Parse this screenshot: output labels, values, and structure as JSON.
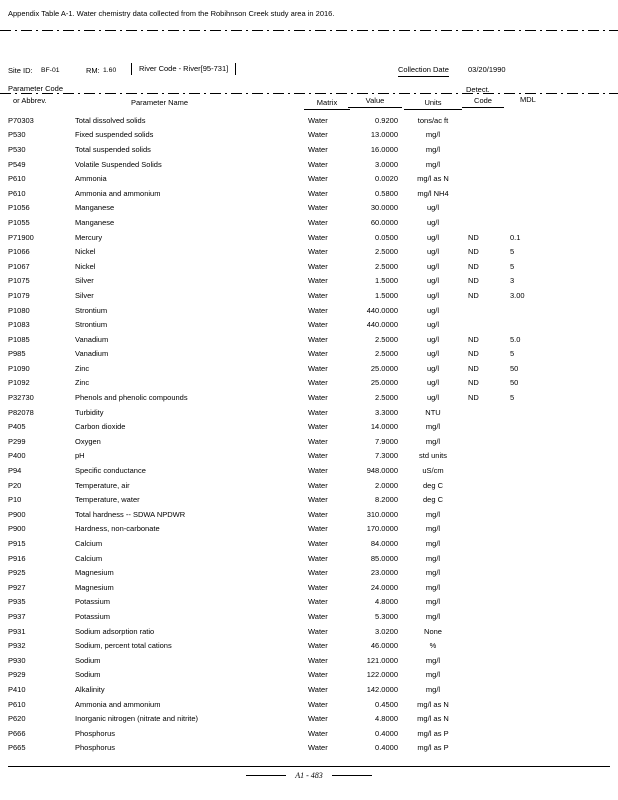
{
  "title": "Appendix Table A-1. Water chemistry data collected from the Robihnson Creek study area in 2016.",
  "meta": {
    "site_id_label": "Site ID:",
    "site_id_value": "BF-01",
    "rm_label": "RM:",
    "rm_value": "1.60",
    "river_code": "River Code - River[95-731]",
    "collection_date_label": "Collection Date",
    "collection_date_value": "03/20/1990"
  },
  "table": {
    "headers": {
      "code_line1": "Parameter Code",
      "code_line2": "or Abbrev.",
      "name": "Parameter Name",
      "matrix": "Matrix",
      "value": "Value",
      "units": "Units",
      "detect_line1": "Detect.",
      "detect_line2": "Code",
      "mdl": "MDL"
    },
    "rows": [
      [
        "P70303",
        "Total dissolved solids",
        "Water",
        "0.9200",
        "tons/ac ft",
        "",
        ""
      ],
      [
        "P530",
        "Fixed suspended solids",
        "Water",
        "13.0000",
        "mg/l",
        "",
        ""
      ],
      [
        "P530",
        "Total suspended solids",
        "Water",
        "16.0000",
        "mg/l",
        "",
        ""
      ],
      [
        "P549",
        "Volatile Suspended Solids",
        "Water",
        "3.0000",
        "mg/l",
        "",
        ""
      ],
      [
        "P610",
        "Ammonia",
        "Water",
        "0.0020",
        "mg/l as N",
        "",
        ""
      ],
      [
        "P610",
        "Ammonia and ammonium",
        "Water",
        "0.5800",
        "mg/l NH4",
        "",
        ""
      ],
      [
        "P1056",
        "Manganese",
        "Water",
        "30.0000",
        "ug/l",
        "",
        ""
      ],
      [
        "P1055",
        "Manganese",
        "Water",
        "60.0000",
        "ug/l",
        "",
        ""
      ],
      [
        "P71900",
        "Mercury",
        "Water",
        "0.0500",
        "ug/l",
        "ND",
        "0.1"
      ],
      [
        "P1066",
        "Nickel",
        "Water",
        "2.5000",
        "ug/l",
        "ND",
        "5"
      ],
      [
        "P1067",
        "Nickel",
        "Water",
        "2.5000",
        "ug/l",
        "ND",
        "5"
      ],
      [
        "P1075",
        "Silver",
        "Water",
        "1.5000",
        "ug/l",
        "ND",
        "3"
      ],
      [
        "P1079",
        "Silver",
        "Water",
        "1.5000",
        "ug/l",
        "ND",
        "3.00"
      ],
      [
        "P1080",
        "Strontium",
        "Water",
        "440.0000",
        "ug/l",
        "",
        ""
      ],
      [
        "P1083",
        "Strontium",
        "Water",
        "440.0000",
        "ug/l",
        "",
        ""
      ],
      [
        "P1085",
        "Vanadium",
        "Water",
        "2.5000",
        "ug/l",
        "ND",
        "5.0"
      ],
      [
        "P985",
        "Vanadium",
        "Water",
        "2.5000",
        "ug/l",
        "ND",
        "5"
      ],
      [
        "P1090",
        "Zinc",
        "Water",
        "25.0000",
        "ug/l",
        "ND",
        "50"
      ],
      [
        "P1092",
        "Zinc",
        "Water",
        "25.0000",
        "ug/l",
        "ND",
        "50"
      ],
      [
        "P32730",
        "Phenols and phenolic compounds",
        "Water",
        "2.5000",
        "ug/l",
        "ND",
        "5"
      ],
      [
        "P82078",
        "Turbidity",
        "Water",
        "3.3000",
        "NTU",
        "",
        ""
      ],
      [
        "P405",
        "Carbon dioxide",
        "Water",
        "14.0000",
        "mg/l",
        "",
        ""
      ],
      [
        "P299",
        "Oxygen",
        "Water",
        "7.9000",
        "mg/l",
        "",
        ""
      ],
      [
        "P400",
        "pH",
        "Water",
        "7.3000",
        "std units",
        "",
        ""
      ],
      [
        "P94",
        "Specific conductance",
        "Water",
        "948.0000",
        "uS/cm",
        "",
        ""
      ],
      [
        "P20",
        "Temperature, air",
        "Water",
        "2.0000",
        "deg C",
        "",
        ""
      ],
      [
        "P10",
        "Temperature, water",
        "Water",
        "8.2000",
        "deg C",
        "",
        ""
      ],
      [
        "P900",
        "Total hardness -- SDWA NPDWR",
        "Water",
        "310.0000",
        "mg/l",
        "",
        ""
      ],
      [
        "P900",
        "Hardness, non-carbonate",
        "Water",
        "170.0000",
        "mg/l",
        "",
        ""
      ],
      [
        "P915",
        "Calcium",
        "Water",
        "84.0000",
        "mg/l",
        "",
        ""
      ],
      [
        "P916",
        "Calcium",
        "Water",
        "85.0000",
        "mg/l",
        "",
        ""
      ],
      [
        "P925",
        "Magnesium",
        "Water",
        "23.0000",
        "mg/l",
        "",
        ""
      ],
      [
        "P927",
        "Magnesium",
        "Water",
        "24.0000",
        "mg/l",
        "",
        ""
      ],
      [
        "P935",
        "Potassium",
        "Water",
        "4.8000",
        "mg/l",
        "",
        ""
      ],
      [
        "P937",
        "Potassium",
        "Water",
        "5.3000",
        "mg/l",
        "",
        ""
      ],
      [
        "P931",
        "Sodium adsorption ratio",
        "Water",
        "3.0200",
        "None",
        "",
        ""
      ],
      [
        "P932",
        "Sodium, percent total cations",
        "Water",
        "46.0000",
        "%",
        "",
        ""
      ],
      [
        "P930",
        "Sodium",
        "Water",
        "121.0000",
        "mg/l",
        "",
        ""
      ],
      [
        "P929",
        "Sodium",
        "Water",
        "122.0000",
        "mg/l",
        "",
        ""
      ],
      [
        "P410",
        "Alkalinity",
        "Water",
        "142.0000",
        "mg/l",
        "",
        ""
      ],
      [
        "P610",
        "Ammonia and ammonium",
        "Water",
        "0.4500",
        "mg/l as N",
        "",
        ""
      ],
      [
        "P620",
        "Inorganic nitrogen (nitrate and nitrite)",
        "Water",
        "4.8000",
        "mg/l as N",
        "",
        ""
      ],
      [
        "P666",
        "Phosphorus",
        "Water",
        "0.4000",
        "mg/l as P",
        "",
        ""
      ],
      [
        "P665",
        "Phosphorus",
        "Water",
        "0.4000",
        "mg/l as P",
        "",
        ""
      ]
    ]
  },
  "footer": {
    "page_label": "A1 - 483"
  }
}
